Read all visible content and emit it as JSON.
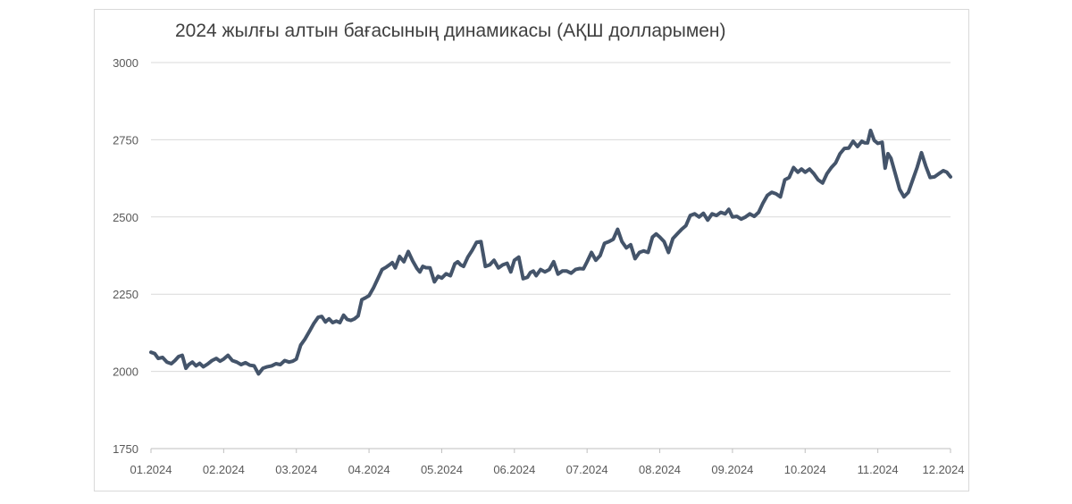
{
  "chart_data": {
    "type": "line",
    "title": "2024 жылғы алтын бағасының динамикасы (АҚШ долларымен)",
    "xlabel": "",
    "ylabel": "",
    "ylim": [
      1750,
      3000
    ],
    "yticks": [
      "1750",
      "2000",
      "2250",
      "2500",
      "2750",
      "3000"
    ],
    "xticks": [
      "01.2024",
      "02.2024",
      "03.2024",
      "04.2024",
      "05.2024",
      "06.2024",
      "07.2024",
      "08.2024",
      "09.2024",
      "10.2024",
      "11.2024",
      "12.2024"
    ],
    "grid": true,
    "legend": "none",
    "line_color": "#44546a",
    "series": [
      {
        "x": [
          0.0,
          0.05,
          0.1,
          0.16,
          0.22,
          0.28,
          0.33,
          0.38,
          0.43,
          0.48,
          0.52,
          0.57,
          0.62,
          0.67,
          0.72,
          0.78,
          0.84,
          0.9,
          0.95,
          1.0,
          1.06,
          1.12,
          1.18,
          1.24,
          1.3,
          1.36,
          1.42,
          1.48,
          1.54,
          1.6,
          1.66,
          1.72,
          1.78,
          1.84,
          1.9,
          1.95,
          2.0,
          2.06,
          2.12,
          2.18,
          2.24,
          2.3,
          2.35,
          2.4,
          2.45,
          2.5,
          2.55,
          2.6,
          2.65,
          2.7,
          2.75,
          2.8,
          2.85,
          2.9,
          2.95,
          3.0,
          3.06,
          3.12,
          3.18,
          3.24,
          3.28,
          3.32,
          3.36,
          3.42,
          3.48,
          3.54,
          3.6,
          3.66,
          3.7,
          3.74,
          3.78,
          3.84,
          3.9,
          3.95,
          4.0,
          4.06,
          4.12,
          4.18,
          4.22,
          4.26,
          4.3,
          4.36,
          4.42,
          4.48,
          4.54,
          4.6,
          4.66,
          4.72,
          4.78,
          4.84,
          4.9,
          4.95,
          5.0,
          5.06,
          5.12,
          5.18,
          5.22,
          5.26,
          5.3,
          5.36,
          5.42,
          5.48,
          5.54,
          5.6,
          5.66,
          5.72,
          5.78,
          5.84,
          5.9,
          5.95,
          6.0,
          6.06,
          6.12,
          6.18,
          6.24,
          6.3,
          6.36,
          6.42,
          6.48,
          6.54,
          6.6,
          6.66,
          6.72,
          6.78,
          6.84,
          6.9,
          6.95,
          7.0,
          7.06,
          7.12,
          7.18,
          7.24,
          7.3,
          7.36,
          7.42,
          7.48,
          7.54,
          7.6,
          7.66,
          7.72,
          7.78,
          7.84,
          7.9,
          7.95,
          8.0,
          8.06,
          8.12,
          8.18,
          8.24,
          8.3,
          8.36,
          8.42,
          8.48,
          8.54,
          8.6,
          8.66,
          8.72,
          8.78,
          8.84,
          8.9,
          8.95,
          9.0,
          9.06,
          9.12,
          9.18,
          9.24,
          9.3,
          9.36,
          9.42,
          9.48,
          9.54,
          9.6,
          9.66,
          9.72,
          9.78,
          9.82,
          9.86,
          9.9,
          9.95,
          10.0,
          10.06,
          10.1,
          10.14,
          10.18,
          10.24,
          10.3,
          10.36,
          10.42,
          10.48,
          10.54,
          10.6,
          10.66,
          10.72,
          10.78,
          10.84,
          10.9,
          10.95,
          11.0
        ],
        "values": [
          2062,
          2058,
          2042,
          2045,
          2030,
          2025,
          2035,
          2048,
          2052,
          2010,
          2022,
          2030,
          2018,
          2026,
          2015,
          2024,
          2035,
          2042,
          2033,
          2040,
          2052,
          2035,
          2030,
          2022,
          2028,
          2020,
          2018,
          1992,
          2010,
          2015,
          2018,
          2025,
          2022,
          2035,
          2030,
          2033,
          2040,
          2085,
          2105,
          2130,
          2155,
          2175,
          2178,
          2160,
          2170,
          2158,
          2163,
          2158,
          2182,
          2168,
          2165,
          2170,
          2180,
          2232,
          2238,
          2245,
          2270,
          2300,
          2330,
          2338,
          2345,
          2352,
          2335,
          2372,
          2355,
          2388,
          2358,
          2333,
          2322,
          2340,
          2336,
          2335,
          2290,
          2308,
          2302,
          2316,
          2310,
          2348,
          2355,
          2345,
          2340,
          2370,
          2392,
          2418,
          2420,
          2340,
          2345,
          2360,
          2335,
          2345,
          2350,
          2322,
          2360,
          2370,
          2300,
          2305,
          2320,
          2325,
          2310,
          2330,
          2322,
          2330,
          2355,
          2315,
          2325,
          2325,
          2318,
          2330,
          2333,
          2332,
          2355,
          2385,
          2360,
          2375,
          2415,
          2420,
          2428,
          2460,
          2420,
          2400,
          2410,
          2365,
          2385,
          2390,
          2385,
          2435,
          2445,
          2435,
          2420,
          2385,
          2430,
          2445,
          2460,
          2472,
          2505,
          2510,
          2500,
          2512,
          2490,
          2510,
          2505,
          2515,
          2510,
          2525,
          2500,
          2502,
          2493,
          2500,
          2510,
          2502,
          2515,
          2545,
          2570,
          2580,
          2575,
          2565,
          2620,
          2628,
          2660,
          2645,
          2655,
          2645,
          2655,
          2640,
          2620,
          2610,
          2640,
          2660,
          2675,
          2705,
          2722,
          2723,
          2745,
          2728,
          2745,
          2740,
          2740,
          2780,
          2748,
          2738,
          2742,
          2658,
          2705,
          2690,
          2640,
          2590,
          2565,
          2580,
          2620,
          2660,
          2708,
          2665,
          2628,
          2630,
          2640,
          2650,
          2645,
          2630
        ]
      }
    ]
  }
}
